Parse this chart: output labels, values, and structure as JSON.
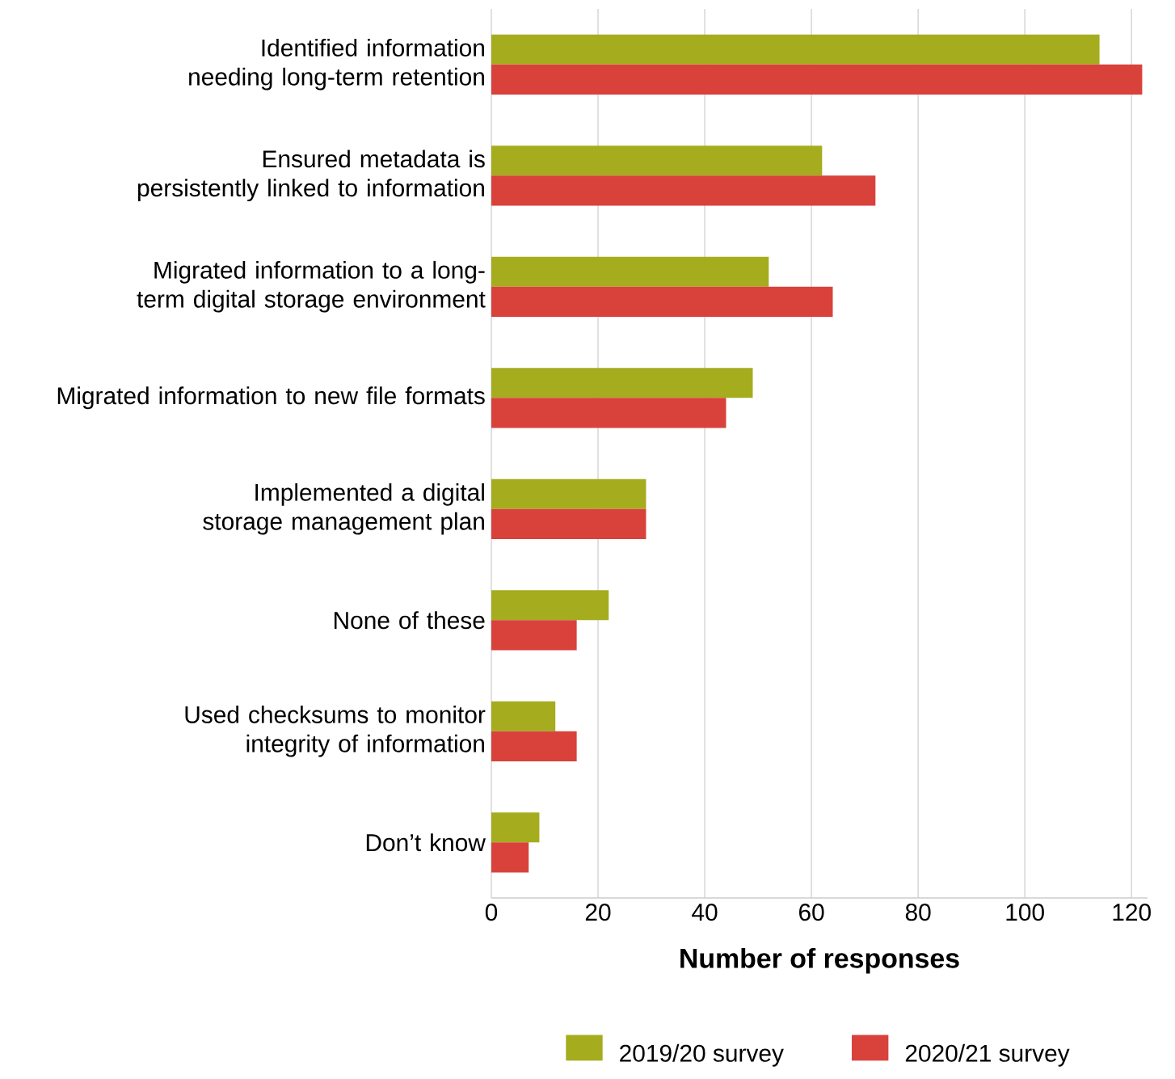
{
  "chart_data": {
    "type": "bar",
    "orientation": "horizontal",
    "xlabel": "Number of responses",
    "categories": [
      "Identified information needing long-term retention",
      "Ensured metadata is persistently linked to information",
      "Migrated information to a long-term digital storage environment",
      "Migrated information to new file formats",
      "Implemented a digital storage management plan",
      "None of these",
      "Used checksums to monitor integrity of information",
      "Don’t know"
    ],
    "series": [
      {
        "name": "2019/20 survey",
        "color": "#a5ac1e",
        "values": [
          114,
          62,
          52,
          49,
          29,
          22,
          12,
          9
        ]
      },
      {
        "name": "2020/21 survey",
        "color": "#d9413b",
        "values": [
          122,
          72,
          64,
          44,
          29,
          16,
          16,
          7
        ]
      }
    ],
    "xlim": [
      0,
      123
    ],
    "xticks": [
      0,
      20,
      40,
      60,
      80,
      100,
      120
    ],
    "grid": "x",
    "legend": "bottom"
  }
}
